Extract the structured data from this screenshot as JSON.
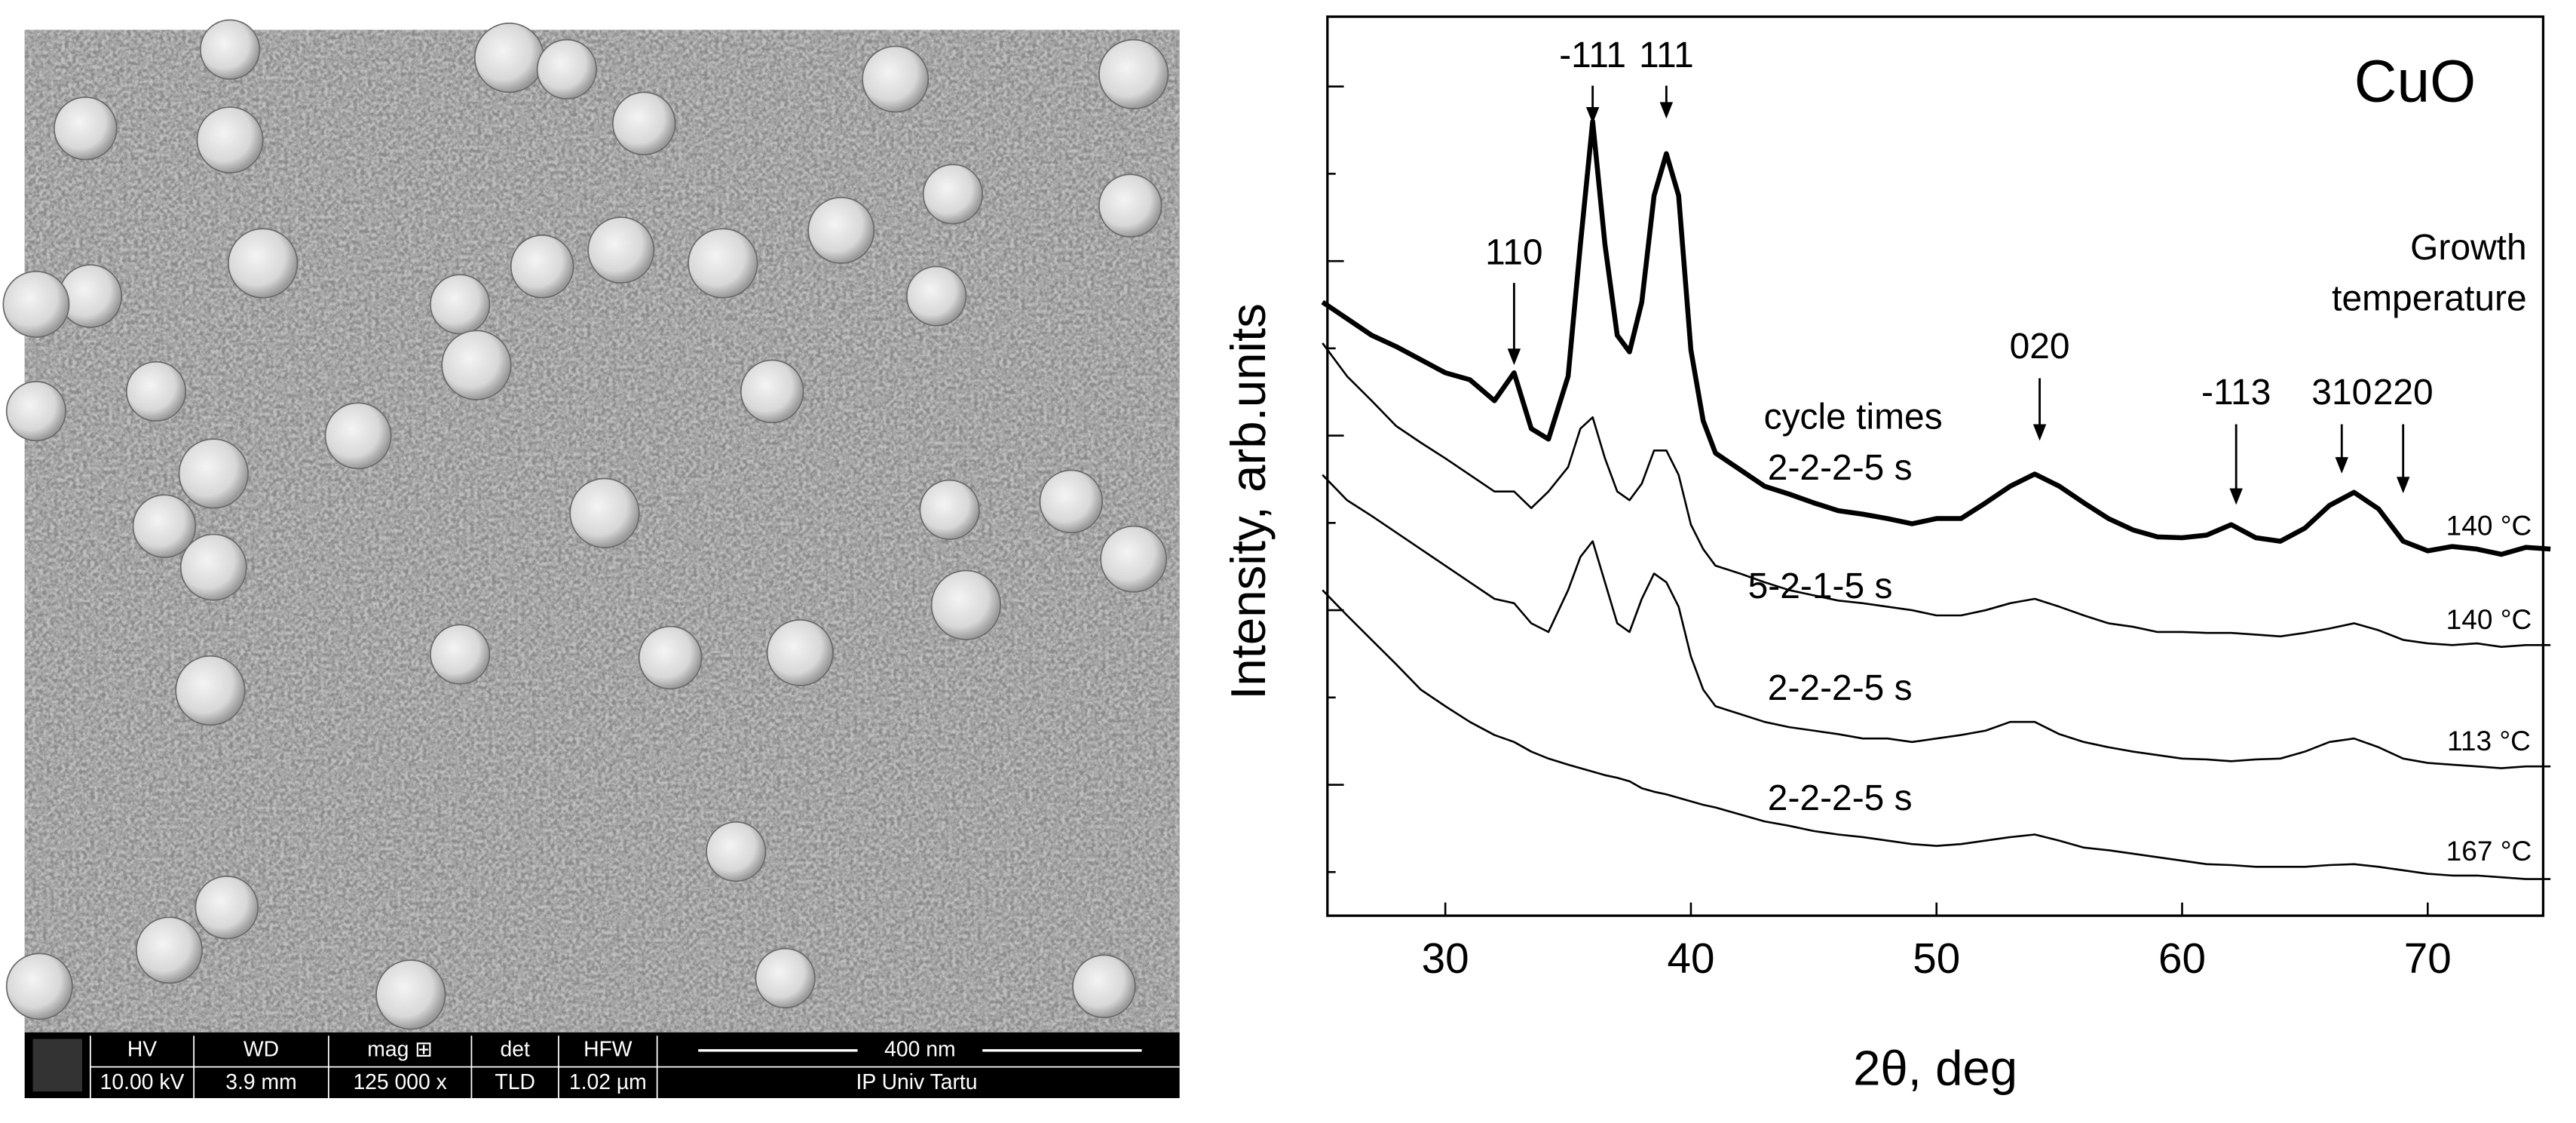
{
  "sem_info": {
    "fields": [
      {
        "name": "HV",
        "value": "10.00 kV"
      },
      {
        "name": "WD",
        "value": "3.9 mm"
      },
      {
        "name": "mag ⊞",
        "value": "125 000 x"
      },
      {
        "name": "det",
        "value": "TLD"
      },
      {
        "name": "HFW",
        "value": "1.02 µm"
      }
    ],
    "scale_bar": "400 nm",
    "lab": "IP Univ Tartu"
  },
  "chart_data": {
    "type": "line",
    "title": "CuO",
    "xlabel": "2θ, deg",
    "ylabel": "Intensity, arb.units",
    "legend_title": [
      "Growth",
      "temperature"
    ],
    "cycle_label": "cycle times",
    "xlim": [
      25.2,
      74.7
    ],
    "xticks": [
      30,
      40,
      50,
      60,
      70
    ],
    "ylim": [
      0.5,
      10.8
    ],
    "yticks": [
      1,
      2,
      3,
      4,
      5,
      6,
      7,
      8,
      9,
      10
    ],
    "x": [
      25,
      26,
      27,
      28,
      29,
      30,
      31,
      32,
      32.8,
      33.5,
      34.2,
      35,
      35.5,
      36,
      36.5,
      37,
      37.5,
      38,
      38.5,
      39,
      39.5,
      40,
      40.5,
      41,
      42,
      43,
      44,
      45,
      46,
      47,
      48,
      49,
      50,
      51,
      52,
      53,
      54,
      55,
      56,
      57,
      58,
      59,
      60,
      61,
      62,
      63,
      64,
      65,
      66,
      67,
      68,
      69,
      70,
      71,
      72,
      73,
      74,
      75
    ],
    "series": [
      {
        "name": "2-2-2-5 s",
        "temperature": "140 °C",
        "color": "#000000",
        "linewidth": 3,
        "values": [
          7.53,
          7.34,
          7.15,
          7.02,
          6.87,
          6.72,
          6.64,
          6.4,
          6.72,
          6.08,
          5.96,
          6.68,
          8.19,
          9.6,
          8.19,
          7.15,
          6.96,
          7.53,
          8.75,
          9.23,
          8.75,
          6.98,
          6.17,
          5.8,
          5.61,
          5.42,
          5.33,
          5.23,
          5.14,
          5.1,
          5.05,
          4.99,
          5.05,
          5.05,
          5.23,
          5.42,
          5.56,
          5.42,
          5.23,
          5.05,
          4.92,
          4.84,
          4.83,
          4.86,
          4.98,
          4.83,
          4.79,
          4.94,
          5.2,
          5.35,
          5.16,
          4.79,
          4.68,
          4.73,
          4.7,
          4.64,
          4.72,
          4.7
        ]
      },
      {
        "name": "5-2-1-5 s",
        "temperature": "140 °C",
        "color": "#000000",
        "linewidth": 1.2,
        "values": [
          7.06,
          6.68,
          6.4,
          6.11,
          5.92,
          5.74,
          5.55,
          5.36,
          5.36,
          5.17,
          5.36,
          5.64,
          6.08,
          6.21,
          5.74,
          5.36,
          5.26,
          5.45,
          5.83,
          5.83,
          5.55,
          4.98,
          4.7,
          4.51,
          4.42,
          4.32,
          4.23,
          4.17,
          4.11,
          4.08,
          4.04,
          4.0,
          3.94,
          3.94,
          4.0,
          4.08,
          4.13,
          4.04,
          3.94,
          3.85,
          3.81,
          3.75,
          3.75,
          3.74,
          3.74,
          3.72,
          3.7,
          3.74,
          3.79,
          3.85,
          3.77,
          3.66,
          3.62,
          3.6,
          3.62,
          3.58,
          3.6,
          3.6
        ]
      },
      {
        "name": "2-2-2-5 s",
        "temperature": "113 °C",
        "color": "#000000",
        "linewidth": 1.2,
        "values": [
          5.55,
          5.26,
          5.08,
          4.89,
          4.7,
          4.51,
          4.32,
          4.13,
          4.08,
          3.85,
          3.75,
          4.23,
          4.61,
          4.79,
          4.32,
          3.85,
          3.75,
          4.13,
          4.42,
          4.32,
          4.04,
          3.47,
          3.09,
          2.9,
          2.81,
          2.72,
          2.66,
          2.62,
          2.58,
          2.53,
          2.53,
          2.49,
          2.53,
          2.57,
          2.62,
          2.72,
          2.72,
          2.58,
          2.49,
          2.43,
          2.38,
          2.34,
          2.3,
          2.29,
          2.27,
          2.29,
          2.3,
          2.38,
          2.49,
          2.53,
          2.43,
          2.3,
          2.25,
          2.23,
          2.21,
          2.19,
          2.21,
          2.21
        ]
      },
      {
        "name": "2-2-2-5 s",
        "temperature": "167 °C",
        "color": "#000000",
        "linewidth": 1.2,
        "values": [
          4.23,
          3.94,
          3.66,
          3.38,
          3.09,
          2.9,
          2.72,
          2.57,
          2.49,
          2.38,
          2.3,
          2.23,
          2.19,
          2.15,
          2.11,
          2.08,
          2.04,
          1.96,
          1.92,
          1.89,
          1.85,
          1.81,
          1.77,
          1.74,
          1.66,
          1.58,
          1.53,
          1.47,
          1.43,
          1.4,
          1.36,
          1.32,
          1.3,
          1.32,
          1.36,
          1.4,
          1.43,
          1.36,
          1.28,
          1.25,
          1.21,
          1.17,
          1.13,
          1.09,
          1.08,
          1.06,
          1.06,
          1.06,
          1.08,
          1.09,
          1.06,
          1.02,
          0.98,
          0.96,
          0.96,
          0.94,
          0.92,
          0.92
        ]
      }
    ],
    "annotations": [
      {
        "text": "110",
        "x": 32.8
      },
      {
        "text": "-111",
        "x": 36
      },
      {
        "text": "111",
        "x": 39
      },
      {
        "text": "020",
        "x": 54.2
      },
      {
        "text": "-113",
        "x": 62.2
      },
      {
        "text": "310",
        "x": 66.5
      },
      {
        "text": "220",
        "x": 69
      }
    ]
  }
}
